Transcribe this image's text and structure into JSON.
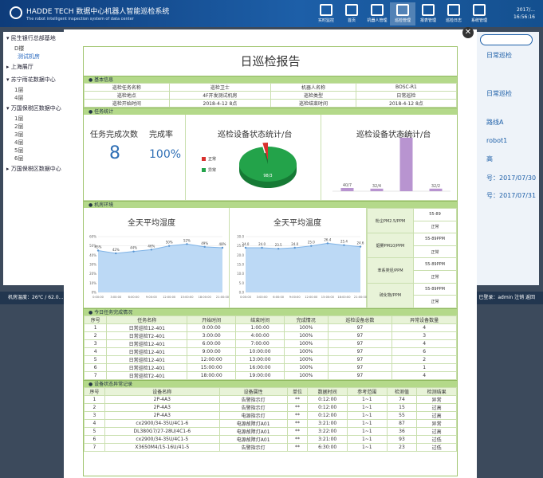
{
  "app": {
    "brand": "HADDE TECH 数据中心机器人智能巡检系统",
    "brand_sub": "The robot intelligent inspection system of data center",
    "nav": [
      {
        "label": "实时监控",
        "icon": "monitor-icon"
      },
      {
        "label": "首页",
        "icon": "home-icon"
      },
      {
        "label": "机器人管理",
        "icon": "robot-icon"
      },
      {
        "label": "巡检管理",
        "icon": "inspection-icon"
      },
      {
        "label": "报表管理",
        "icon": "report-icon"
      },
      {
        "label": "巡检日志",
        "icon": "log-icon"
      },
      {
        "label": "系统管理",
        "icon": "settings-icon"
      }
    ],
    "clock_date": "2017/...",
    "clock_time": "16:56:16"
  },
  "background": {
    "sidebar": [
      {
        "label": "民生银行总部基地",
        "children": [
          "D楼",
          "测试机房"
        ]
      },
      {
        "label": "上海展厅",
        "children": []
      },
      {
        "label": "苏宁雨花数据中心",
        "children": [
          "1层",
          "4层"
        ]
      },
      {
        "label": "万国保税区数据中心",
        "children": [
          "1层",
          "2层",
          "3层",
          "4层",
          "5层",
          "6层"
        ]
      },
      {
        "label": "万国保税区数据中心",
        "children": []
      }
    ],
    "right_values": [
      "日常巡检",
      "日常巡检",
      "路线A",
      "robot1",
      "高",
      "号：2017/07/30",
      "号：2017/07/31"
    ],
    "status_left": "机房温度：26℃ / 62.0...",
    "status_right": "已登录：admin   注销 返回"
  },
  "report": {
    "title": "日巡检报告",
    "sections": {
      "basic": "基本信息",
      "task": "任务统计",
      "env": "机房环境",
      "tasks_done": "今日任务完成情况",
      "abnormal": "设备状态异常记录"
    },
    "basic_info": [
      [
        "巡检任务名称",
        "巡检卫士",
        "机器人名称",
        "BOSC-R1"
      ],
      [
        "巡检地点",
        "4F开发测试机房",
        "巡检类型",
        "日常巡检"
      ],
      [
        "巡检开始时间",
        "2018-4-12  8点",
        "巡检结束时间",
        "2018-4-12  8点"
      ]
    ],
    "task_stats": {
      "count_label": "任务完成次数",
      "rate_label": "完成率",
      "count": "8",
      "rate": "100%",
      "pie_title": "巡检设备状态统计/台",
      "pie_legend": [
        "正常",
        "异常"
      ],
      "pie_label": "98/3",
      "bar_title": "巡检设备状态统计/台"
    },
    "env": {
      "humidity_title": "全天平均湿度",
      "temp_title": "全天平均温度",
      "pm": [
        {
          "label": "粉尘PM2.5/PPM",
          "value": "55-89",
          "status": "正常"
        },
        {
          "label": "烟雾PM10/PPM",
          "value": "55-89PPM",
          "status": "正常"
        },
        {
          "label": "苯系类烃/PPM",
          "value": "55-89PPM",
          "status": "正常"
        },
        {
          "label": "硫化物/PPM",
          "value": "55-89PPM",
          "status": "正常"
        }
      ]
    },
    "task_table": {
      "headers": [
        "序号",
        "任务名称",
        "开始时间",
        "结束时间",
        "完成情况",
        "巡检设备总数",
        "异常设备数量"
      ],
      "rows": [
        [
          "1",
          "日常巡检12-401",
          "0:00:00",
          "1:00:00",
          "100%",
          "97",
          "4"
        ],
        [
          "2",
          "日常巡检T2-401",
          "3:00:00",
          "4:00:00",
          "100%",
          "97",
          "3"
        ],
        [
          "3",
          "日常巡检12-401",
          "6:00:00",
          "7:00:00",
          "100%",
          "97",
          "4"
        ],
        [
          "4",
          "日常巡检12-401",
          "9:00:00",
          "10:00:00",
          "100%",
          "97",
          "6"
        ],
        [
          "5",
          "日常巡检12-401",
          "12:00:00",
          "13:00:00",
          "100%",
          "97",
          "2"
        ],
        [
          "6",
          "日常巡检12-401",
          "15:00:00",
          "16:00:00",
          "100%",
          "97",
          "1"
        ],
        [
          "7",
          "日常巡检T2-401",
          "18:00:00",
          "19:00:00",
          "100%",
          "97",
          "4"
        ]
      ]
    },
    "abnormal_table": {
      "headers": [
        "序号",
        "设备名称",
        "设备属性",
        "单位",
        "数据时间",
        "参考范围",
        "检测值",
        "检测结果"
      ],
      "rows": [
        [
          "1",
          "2P-4A3",
          "告警指示灯",
          "**",
          "0:12:00",
          "1~1",
          "74",
          "异常"
        ],
        [
          "2",
          "2P-4A3",
          "告警指示灯",
          "**",
          "0:12:00",
          "1~1",
          "15",
          "过高"
        ],
        [
          "3",
          "2P-4A3",
          "电源指示灯",
          "**",
          "0:12:00",
          "1~1",
          "55",
          "过高"
        ],
        [
          "4",
          "cx2900/34-35U/4C1-6",
          "电源故障灯A01",
          "**",
          "3:21:00",
          "1~1",
          "87",
          "异常"
        ],
        [
          "5",
          "DL380G7/27-28U/4C1-6",
          "电源故障灯A01",
          "**",
          "3:22:00",
          "1~1",
          "36",
          "过高"
        ],
        [
          "6",
          "cx2900/34-35U/4C1-5",
          "电源故障灯A01",
          "**",
          "3:21:00",
          "1~1",
          "93",
          "过低"
        ],
        [
          "7",
          "X3650M4/15-16U/41-5",
          "告警指示灯",
          "**",
          "6:30:00",
          "1~1",
          "23",
          "过低"
        ]
      ]
    }
  },
  "chart_data": [
    {
      "type": "pie",
      "title": "巡检设备状态统计/台",
      "categories": [
        "正常",
        "异常"
      ],
      "values": [
        98,
        3
      ],
      "colors": [
        "#23a34a",
        "#d9312e"
      ]
    },
    {
      "type": "bar",
      "title": "巡检设备状态统计/台",
      "categories": [
        "",
        "",
        "",
        ""
      ],
      "values": [
        40,
        32,
        672,
        32
      ],
      "labels": [
        "40/7",
        "32/4",
        "672/21",
        "32/2"
      ],
      "color": "#b894d0",
      "ylim": [
        0,
        700
      ]
    },
    {
      "type": "area",
      "title": "全天平均湿度",
      "x": [
        "0:00:00",
        "3:00:00",
        "6:00:00",
        "9:00:00",
        "12:00:00",
        "15:00:00",
        "18:00:00",
        "21:00:00"
      ],
      "values": [
        45,
        42,
        44,
        46,
        50,
        52,
        49,
        48
      ],
      "yticks": [
        "0%",
        "10%",
        "20%",
        "30%",
        "40%",
        "50%",
        "60%"
      ],
      "ylim": [
        0,
        60
      ],
      "color": "#7fb3e6"
    },
    {
      "type": "area",
      "title": "全天平均温度",
      "x": [
        "0:00:00",
        "3:00:00",
        "6:00:00",
        "9:00:00",
        "12:00:00",
        "15:00:00",
        "18:00:00",
        "21:00:00"
      ],
      "values": [
        24.0,
        24.0,
        23.5,
        24.0,
        25.0,
        26.4,
        25.4,
        24.6
      ],
      "yticks": [
        "0.0",
        "5.0",
        "10.0",
        "15.0",
        "20.0",
        "25.0",
        "30.0"
      ],
      "ylim": [
        0,
        30
      ],
      "color": "#7fb3e6"
    }
  ]
}
